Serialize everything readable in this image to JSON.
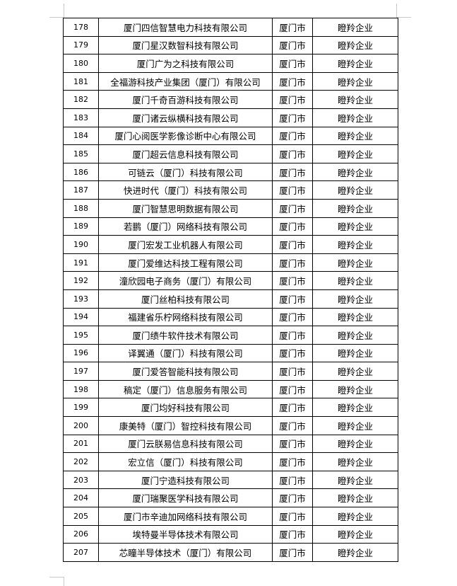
{
  "table": {
    "rows": [
      {
        "no": "178",
        "name": "厦门四信智慧电力科技有限公司",
        "city": "厦门市",
        "type": "瞪羚企业"
      },
      {
        "no": "179",
        "name": "厦门星汉数智科技有限公司",
        "city": "厦门市",
        "type": "瞪羚企业"
      },
      {
        "no": "180",
        "name": "厦门广为之科技有限公司",
        "city": "厦门市",
        "type": "瞪羚企业"
      },
      {
        "no": "181",
        "name": "全福游科技产业集团（厦门）有限公司",
        "city": "厦门市",
        "type": "瞪羚企业"
      },
      {
        "no": "182",
        "name": "厦门千奇百游科技有限公司",
        "city": "厦门市",
        "type": "瞪羚企业"
      },
      {
        "no": "183",
        "name": "厦门诸云纵横科技有限公司",
        "city": "厦门市",
        "type": "瞪羚企业"
      },
      {
        "no": "184",
        "name": "厦门心阅医学影像诊断中心有限公司",
        "city": "厦门市",
        "type": "瞪羚企业"
      },
      {
        "no": "185",
        "name": "厦门超云信息科技有限公司",
        "city": "厦门市",
        "type": "瞪羚企业"
      },
      {
        "no": "186",
        "name": "可链云（厦门）科技有限公司",
        "city": "厦门市",
        "type": "瞪羚企业"
      },
      {
        "no": "187",
        "name": "快进时代（厦门）科技有限公司",
        "city": "厦门市",
        "type": "瞪羚企业"
      },
      {
        "no": "188",
        "name": "厦门智慧思明数据有限公司",
        "city": "厦门市",
        "type": "瞪羚企业"
      },
      {
        "no": "189",
        "name": "若鹏（厦门）网络科技有限公司",
        "city": "厦门市",
        "type": "瞪羚企业"
      },
      {
        "no": "190",
        "name": "厦门宏发工业机器人有限公司",
        "city": "厦门市",
        "type": "瞪羚企业"
      },
      {
        "no": "191",
        "name": "厦门爱维达科技工程有限公司",
        "city": "厦门市",
        "type": "瞪羚企业"
      },
      {
        "no": "192",
        "name": "潼欣园电子商务（厦门）有限公司",
        "city": "厦门市",
        "type": "瞪羚企业"
      },
      {
        "no": "193",
        "name": "厦门丝柏科技有限公司",
        "city": "厦门市",
        "type": "瞪羚企业"
      },
      {
        "no": "194",
        "name": "福建省乐柠网络科技有限公司",
        "city": "厦门市",
        "type": "瞪羚企业"
      },
      {
        "no": "195",
        "name": "厦门绩牛软件技术有限公司",
        "city": "厦门市",
        "type": "瞪羚企业"
      },
      {
        "no": "196",
        "name": "译翼通（厦门）科技有限公司",
        "city": "厦门市",
        "type": "瞪羚企业"
      },
      {
        "no": "197",
        "name": "厦门爱答智能科技有限公司",
        "city": "厦门市",
        "type": "瞪羚企业"
      },
      {
        "no": "198",
        "name": "稿定（厦门）信息服务有限公司",
        "city": "厦门市",
        "type": "瞪羚企业"
      },
      {
        "no": "199",
        "name": "厦门均好科技有限公司",
        "city": "厦门市",
        "type": "瞪羚企业"
      },
      {
        "no": "200",
        "name": "康美特（厦门）智控科技有限公司",
        "city": "厦门市",
        "type": "瞪羚企业"
      },
      {
        "no": "201",
        "name": "厦门云朕易信息科技有限公司",
        "city": "厦门市",
        "type": "瞪羚企业"
      },
      {
        "no": "202",
        "name": "宏立信（厦门）科技有限公司",
        "city": "厦门市",
        "type": "瞪羚企业"
      },
      {
        "no": "203",
        "name": "厦门宁造科技有限公司",
        "city": "厦门市",
        "type": "瞪羚企业"
      },
      {
        "no": "204",
        "name": "厦门瑞聚医学科技有限公司",
        "city": "厦门市",
        "type": "瞪羚企业"
      },
      {
        "no": "205",
        "name": "厦门市辛迪加网络科技有限公司",
        "city": "厦门市",
        "type": "瞪羚企业"
      },
      {
        "no": "206",
        "name": "埃特曼半导体技术有限公司",
        "city": "厦门市",
        "type": "瞪羚企业"
      },
      {
        "no": "207",
        "name": "芯瞳半导体技术（厦门）有限公司",
        "city": "厦门市",
        "type": "瞪羚企业"
      }
    ]
  }
}
